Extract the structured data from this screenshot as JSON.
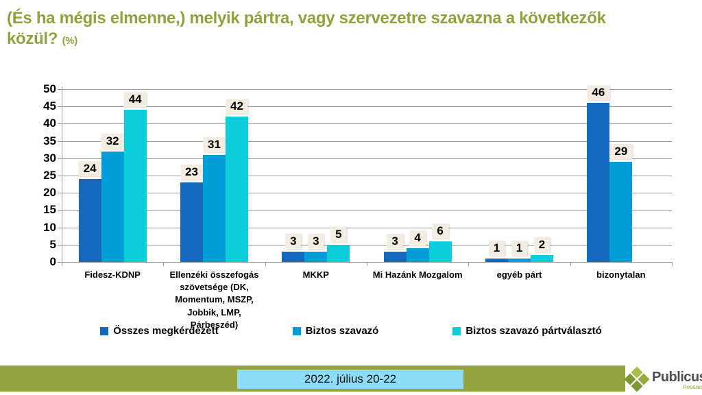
{
  "title": {
    "text": "(És ha mégis elmenne,) melyik pártra, vagy szervezetre szavazna a következők közül?",
    "unit": "(%)"
  },
  "chart_data": {
    "type": "bar",
    "categories": [
      "Fidesz-KDNP",
      "Ellenzéki összefogás szövetsége (DK, Momentum, MSZP, Jobbik, LMP, Párbeszéd)",
      "MKKP",
      "Mi Hazánk Mozgalom",
      "egyéb párt",
      "bizonytalan"
    ],
    "series": [
      {
        "name": "Összes megkérdezett",
        "color": "#1468BE",
        "values": [
          24,
          23,
          3,
          3,
          1,
          46
        ]
      },
      {
        "name": "Biztos szavazó",
        "color": "#009DD9",
        "values": [
          32,
          31,
          3,
          4,
          1,
          29
        ]
      },
      {
        "name": "Biztos szavazó pártválasztó",
        "color": "#0CCEDA",
        "values": [
          44,
          42,
          5,
          6,
          2,
          null
        ]
      }
    ],
    "ylim": [
      0,
      50
    ],
    "ytick_step": 5,
    "grid": true,
    "legend_position": "bottom",
    "data_labels": true
  },
  "footer": {
    "date_label": "2022. július 20-22"
  },
  "logo": {
    "brand": "Publicus",
    "sub": "Research"
  },
  "colors": {
    "accent_green": "#96A43F",
    "title_green": "#8FA33C",
    "date_box_blue": "#8DDCF8",
    "gridline": "#999999",
    "value_label_bg": "#F3ECE1",
    "logo_light_green": "#A9BD4B",
    "logo_dark_green": "#7D9734",
    "logo_mid_green": "#93AC3B"
  }
}
